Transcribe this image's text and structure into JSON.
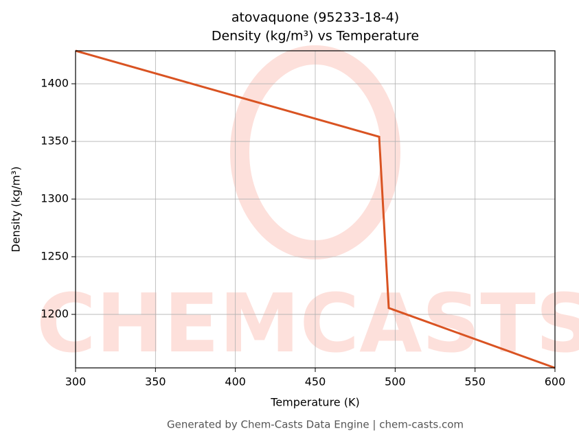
{
  "chart_data": {
    "type": "line",
    "title": "atovaquone (95233-18-4)",
    "subtitle": "Density (kg/m³) vs Temperature",
    "x_label": "Temperature (K)",
    "y_label": "Density (kg/m³)",
    "watermark": "CHEMCASTS",
    "footer": "Generated by Chem-Casts Data Engine | chem-casts.com",
    "x": [
      300,
      490,
      496,
      600
    ],
    "series": [
      {
        "name": "Density",
        "color": "#d95322",
        "values": [
          1428.6,
          1354,
          1205.5,
          1153.6
        ]
      }
    ],
    "xlim": [
      300,
      600
    ],
    "xticks": [
      300,
      350,
      400,
      450,
      500,
      550,
      600
    ],
    "ylim": [
      1153.6,
      1428.6
    ],
    "yticks": [
      1200,
      1250,
      1300,
      1350,
      1400
    ],
    "grid": true
  }
}
